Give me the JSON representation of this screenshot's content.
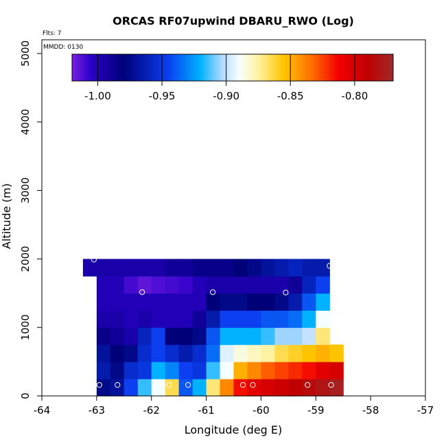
{
  "chart_data": {
    "type": "heatmap",
    "title": "ORCAS RF07upwind DBARU_RWO (Log)",
    "xlabel": "Longitude (deg E)",
    "ylabel": "Altitude (m)",
    "flights_label": "Flts: 7",
    "mmdd_label": "MMDD: 0130",
    "xlim": [
      -64,
      -57
    ],
    "ylim": [
      0,
      5200
    ],
    "xticks": [
      "-64",
      "-63",
      "-62",
      "-61",
      "-60",
      "-59",
      "-58",
      "-57"
    ],
    "xtick_values": [
      -64,
      -63,
      -62,
      -61,
      -60,
      -59,
      -58,
      -57
    ],
    "yticks": [
      "0",
      "1000",
      "2000",
      "3000",
      "4000",
      "5000"
    ],
    "ytick_values": [
      0,
      1000,
      2000,
      3000,
      4000,
      5000
    ],
    "colorbar": {
      "range": [
        -1.02,
        -0.77
      ],
      "ticks": [
        "-1.00",
        "-0.95",
        "-0.90",
        "-0.85",
        "-0.80"
      ],
      "tick_values": [
        -1.0,
        -0.95,
        -0.9,
        -0.85,
        -0.8
      ]
    },
    "x_edges": [
      -63.25,
      -63.0,
      -62.75,
      -62.5,
      -62.25,
      -62.0,
      -61.75,
      -61.5,
      -61.25,
      -61.0,
      -60.75,
      -60.5,
      -60.25,
      -60.0,
      -59.75,
      -59.5,
      -59.25,
      -59.0,
      -58.75,
      -58.5
    ],
    "rows": [
      {
        "bottom": 0,
        "top": 250,
        "start": -63.0,
        "values": [
          -0.975,
          -0.97,
          -0.945,
          -0.915,
          -0.89,
          -0.865,
          -0.94,
          -0.92,
          -0.87,
          -0.84,
          -0.815,
          -0.805,
          -0.8,
          -0.795,
          -0.79,
          -0.785,
          -0.78,
          -0.775,
          -0.775
        ]
      },
      {
        "bottom": 250,
        "top": 500,
        "start": -63.0,
        "values": [
          -0.965,
          -0.975,
          -0.955,
          -0.95,
          -0.92,
          -0.93,
          -0.945,
          -0.95,
          -0.915,
          -0.89,
          -0.85,
          -0.84,
          -0.83,
          -0.825,
          -0.82,
          -0.815,
          -0.805,
          -0.8
        ]
      },
      {
        "bottom": 500,
        "top": 750,
        "start": -63.0,
        "values": [
          -0.97,
          -0.98,
          -0.975,
          -0.955,
          -0.945,
          -0.955,
          -0.965,
          -0.955,
          -0.935,
          -0.895,
          -0.885,
          -0.88,
          -0.875,
          -0.865,
          -0.86,
          -0.855,
          -0.85,
          -0.855
        ]
      },
      {
        "bottom": 750,
        "top": 1000,
        "start": -63.0,
        "values": [
          -0.985,
          -0.99,
          -0.995,
          -0.96,
          -0.945,
          -0.98,
          -0.98,
          -0.975,
          -0.94,
          -0.92,
          -0.92,
          -0.92,
          -0.915,
          -0.905,
          -0.905,
          -0.9,
          -0.87
        ]
      },
      {
        "bottom": 1000,
        "top": 1250,
        "start": -63.0,
        "values": [
          -0.995,
          -0.995,
          -1.0,
          -0.995,
          -1.0,
          -1.0,
          -1.0,
          -0.99,
          -0.965,
          -0.945,
          -0.945,
          -0.945,
          -0.94,
          -0.94,
          -0.935,
          -0.92,
          -0.89
        ]
      },
      {
        "bottom": 1250,
        "top": 1500,
        "start": -63.0,
        "values": [
          -1.0,
          -1.0,
          -1.0,
          -1.0,
          -1.0,
          -1.0,
          -1.0,
          -1.0,
          -0.98,
          -0.975,
          -0.975,
          -0.98,
          -0.98,
          -0.975,
          -0.965,
          -0.94,
          -0.92
        ]
      },
      {
        "bottom": 1500,
        "top": 1750,
        "start": -63.0,
        "values": [
          -1.0,
          -1.0,
          -1.01,
          -1.015,
          -1.012,
          -1.01,
          -1.008,
          -1.0,
          -0.995,
          -0.995,
          -0.995,
          -0.995,
          -0.995,
          -0.995,
          -0.99,
          -0.96,
          -0.945
        ]
      },
      {
        "bottom": 1750,
        "top": 2000,
        "start": -63.25,
        "values": [
          -0.995,
          -0.995,
          -0.995,
          -0.995,
          -0.995,
          -0.995,
          -0.99,
          -0.99,
          -0.985,
          -0.985,
          -0.985,
          -0.98,
          -0.975,
          -0.97,
          -0.965,
          -0.96,
          -0.965,
          -0.965
        ]
      }
    ],
    "flight_points": [
      {
        "lon": -63.05,
        "alt": 160
      },
      {
        "lon": -62.95,
        "alt": 160
      },
      {
        "lon": -62.62,
        "alt": 160
      },
      {
        "lon": -61.68,
        "alt": 160
      },
      {
        "lon": -61.33,
        "alt": 160
      },
      {
        "lon": -60.33,
        "alt": 160
      },
      {
        "lon": -60.15,
        "alt": 160
      },
      {
        "lon": -59.15,
        "alt": 160
      },
      {
        "lon": -58.72,
        "alt": 160
      },
      {
        "lon": -63.05,
        "alt": 1990
      },
      {
        "lon": -58.75,
        "alt": 1900
      },
      {
        "lon": -62.17,
        "alt": 1515
      },
      {
        "lon": -60.88,
        "alt": 1515
      },
      {
        "lon": -59.55,
        "alt": 1510
      }
    ]
  }
}
